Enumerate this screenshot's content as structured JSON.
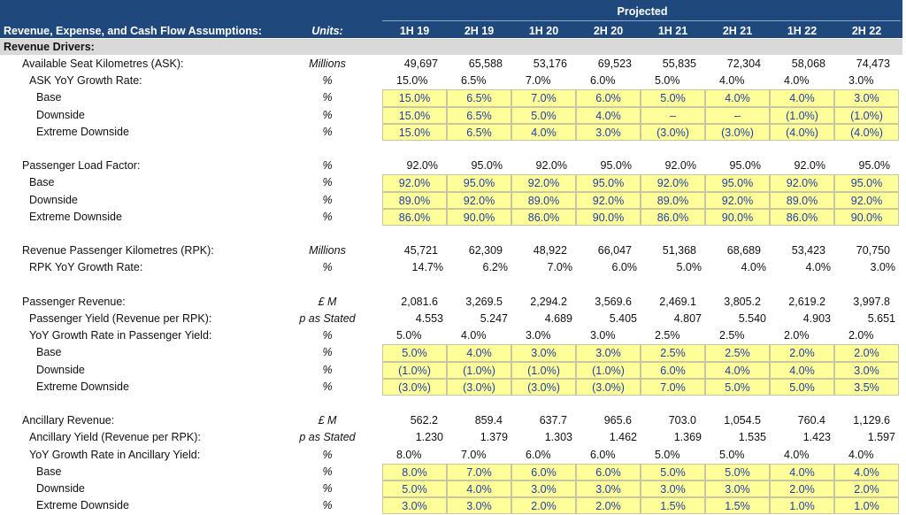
{
  "header": {
    "title": "Revenue, Expense, and Cash Flow Assumptions:",
    "units_label": "Units:",
    "group_label": "Projected",
    "periods": [
      "1H 19",
      "2H 19",
      "1H 20",
      "2H 20",
      "1H 21",
      "2H 21",
      "1H 22",
      "2H 22"
    ]
  },
  "colors": {
    "header_bg": "#1f497d",
    "section_bg": "#d9d9d9",
    "input_bg": "#ffff99",
    "input_text": "#1f3fa8"
  },
  "section": {
    "title": "Revenue Drivers:"
  },
  "rows": [
    {
      "label": "Available Seat Kilometres (ASK):",
      "indent": 0,
      "unit": "Millions",
      "style": "num",
      "values": [
        "49,697",
        "65,588",
        "53,176",
        "69,523",
        "55,835",
        "72,304",
        "58,068",
        "74,473"
      ]
    },
    {
      "label": "ASK YoY Growth Rate:",
      "indent": 1,
      "unit": "%",
      "style": "pct",
      "values": [
        "15.0%",
        "6.5%",
        "7.0%",
        "6.0%",
        "5.0%",
        "4.0%",
        "4.0%",
        "3.0%"
      ]
    },
    {
      "label": "Base",
      "indent": 2,
      "unit": "%",
      "style": "inp",
      "values": [
        "15.0%",
        "6.5%",
        "7.0%",
        "6.0%",
        "5.0%",
        "4.0%",
        "4.0%",
        "3.0%"
      ]
    },
    {
      "label": "Downside",
      "indent": 2,
      "unit": "%",
      "style": "inp",
      "values": [
        "15.0%",
        "6.5%",
        "5.0%",
        "4.0%",
        "–",
        "–",
        "(1.0%)",
        "(1.0%)"
      ]
    },
    {
      "label": "Extreme Downside",
      "indent": 2,
      "unit": "%",
      "style": "inp",
      "values": [
        "15.0%",
        "6.5%",
        "4.0%",
        "3.0%",
        "(3.0%)",
        "(3.0%)",
        "(4.0%)",
        "(4.0%)"
      ]
    },
    null,
    {
      "label": "Passenger Load Factor:",
      "indent": 0,
      "unit": "%",
      "style": "num",
      "values": [
        "92.0%",
        "95.0%",
        "92.0%",
        "95.0%",
        "92.0%",
        "95.0%",
        "92.0%",
        "95.0%"
      ]
    },
    {
      "label": "Base",
      "indent": 1,
      "unit": "%",
      "style": "inp",
      "values": [
        "92.0%",
        "95.0%",
        "92.0%",
        "95.0%",
        "92.0%",
        "95.0%",
        "92.0%",
        "95.0%"
      ]
    },
    {
      "label": "Downside",
      "indent": 1,
      "unit": "%",
      "style": "inp",
      "values": [
        "89.0%",
        "92.0%",
        "89.0%",
        "92.0%",
        "89.0%",
        "92.0%",
        "89.0%",
        "92.0%"
      ]
    },
    {
      "label": "Extreme Downside",
      "indent": 1,
      "unit": "%",
      "style": "inp",
      "values": [
        "86.0%",
        "90.0%",
        "86.0%",
        "90.0%",
        "86.0%",
        "90.0%",
        "86.0%",
        "90.0%"
      ]
    },
    null,
    {
      "label": "Revenue Passenger Kilometres (RPK):",
      "indent": 0,
      "unit": "Millions",
      "style": "num",
      "values": [
        "45,721",
        "62,309",
        "48,922",
        "66,047",
        "51,368",
        "68,689",
        "53,423",
        "70,750"
      ]
    },
    {
      "label": "RPK YoY Growth Rate:",
      "indent": 1,
      "unit": "%",
      "style": "rpct",
      "values": [
        "14.7%",
        "6.2%",
        "7.0%",
        "6.0%",
        "5.0%",
        "4.0%",
        "4.0%",
        "3.0%"
      ]
    },
    null,
    {
      "label": "Passenger Revenue:",
      "indent": 0,
      "unit": "£ M",
      "style": "num",
      "values": [
        "2,081.6",
        "3,269.5",
        "2,294.2",
        "3,569.6",
        "2,469.1",
        "3,805.2",
        "2,619.2",
        "3,997.8"
      ]
    },
    {
      "label": "Passenger Yield (Revenue per RPK):",
      "indent": 1,
      "unit": "p as Stated",
      "style": "rpct",
      "values": [
        "4.553",
        "5.247",
        "4.689",
        "5.405",
        "4.807",
        "5.540",
        "4.903",
        "5.651"
      ]
    },
    {
      "label": "YoY Growth Rate in Passenger Yield:",
      "indent": 1,
      "unit": "%",
      "style": "pct",
      "values": [
        "5.0%",
        "4.0%",
        "3.0%",
        "3.0%",
        "2.5%",
        "2.5%",
        "2.0%",
        "2.0%"
      ]
    },
    {
      "label": "Base",
      "indent": 2,
      "unit": "%",
      "style": "inp",
      "values": [
        "5.0%",
        "4.0%",
        "3.0%",
        "3.0%",
        "2.5%",
        "2.5%",
        "2.0%",
        "2.0%"
      ]
    },
    {
      "label": "Downside",
      "indent": 2,
      "unit": "%",
      "style": "inp",
      "values": [
        "(1.0%)",
        "(1.0%)",
        "(1.0%)",
        "(1.0%)",
        "6.0%",
        "4.0%",
        "4.0%",
        "3.0%"
      ]
    },
    {
      "label": "Extreme Downside",
      "indent": 2,
      "unit": "%",
      "style": "inp",
      "values": [
        "(3.0%)",
        "(3.0%)",
        "(3.0%)",
        "(3.0%)",
        "7.0%",
        "5.0%",
        "5.0%",
        "3.5%"
      ]
    },
    null,
    {
      "label": "Ancillary Revenue:",
      "indent": 0,
      "unit": "£ M",
      "style": "num",
      "values": [
        "562.2",
        "859.4",
        "637.7",
        "965.6",
        "703.0",
        "1,054.5",
        "760.4",
        "1,129.6"
      ]
    },
    {
      "label": "Ancillary Yield (Revenue per RPK):",
      "indent": 1,
      "unit": "p as Stated",
      "style": "rpct",
      "values": [
        "1.230",
        "1.379",
        "1.303",
        "1.462",
        "1.369",
        "1.535",
        "1.423",
        "1.597"
      ]
    },
    {
      "label": "YoY Growth Rate in Ancillary Yield:",
      "indent": 1,
      "unit": "%",
      "style": "pct",
      "values": [
        "8.0%",
        "7.0%",
        "6.0%",
        "6.0%",
        "5.0%",
        "5.0%",
        "4.0%",
        "4.0%"
      ]
    },
    {
      "label": "Base",
      "indent": 2,
      "unit": "%",
      "style": "inp",
      "values": [
        "8.0%",
        "7.0%",
        "6.0%",
        "6.0%",
        "5.0%",
        "5.0%",
        "4.0%",
        "4.0%"
      ]
    },
    {
      "label": "Downside",
      "indent": 2,
      "unit": "%",
      "style": "inp",
      "values": [
        "5.0%",
        "4.0%",
        "3.0%",
        "3.0%",
        "3.0%",
        "3.0%",
        "2.0%",
        "2.0%"
      ]
    },
    {
      "label": "Extreme Downside",
      "indent": 2,
      "unit": "%",
      "style": "inp",
      "values": [
        "3.0%",
        "3.0%",
        "2.0%",
        "2.0%",
        "1.5%",
        "1.5%",
        "1.0%",
        "1.0%"
      ]
    }
  ]
}
